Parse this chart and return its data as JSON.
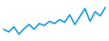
{
  "x": [
    0,
    1,
    2,
    3,
    4,
    5,
    6,
    7,
    8,
    9,
    10,
    11,
    12,
    13,
    14,
    15,
    16,
    17,
    18,
    19,
    20
  ],
  "y": [
    6.0,
    5.2,
    6.8,
    4.5,
    6.2,
    7.5,
    6.0,
    7.8,
    7.2,
    8.5,
    7.8,
    9.0,
    8.2,
    10.5,
    7.5,
    10.0,
    12.5,
    8.5,
    11.5,
    10.2,
    12.8
  ],
  "line_color": "#1a9cd8",
  "linewidth": 1.2,
  "background_color": "#ffffff",
  "ylim": [
    3,
    14.5
  ],
  "xlim": [
    -0.3,
    20.3
  ]
}
